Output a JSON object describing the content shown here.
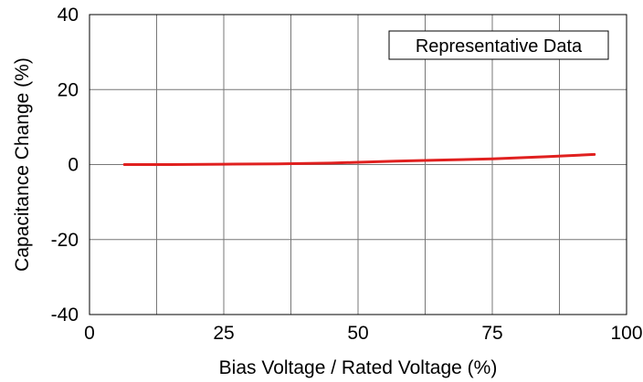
{
  "chart_data": {
    "type": "line",
    "title": "",
    "xlabel": "Bias  Voltage / Rated Voltage (%)",
    "ylabel": "Capacitance Change (%)",
    "xlim": [
      0,
      100
    ],
    "ylim": [
      -40,
      40
    ],
    "x_ticks": [
      "0",
      "25",
      "50",
      "75",
      "100"
    ],
    "y_ticks": [
      "40",
      "20",
      "0",
      "-20",
      "-40"
    ],
    "grid": true,
    "annotation": "Representative Data",
    "series": [
      {
        "color": "#e0201f",
        "x": [
          6.5,
          15,
          25,
          35,
          45,
          50,
          57,
          65,
          75,
          85,
          94
        ],
        "y": [
          0.0,
          0.0,
          0.1,
          0.2,
          0.4,
          0.6,
          0.9,
          1.2,
          1.5,
          2.1,
          2.7
        ]
      }
    ]
  }
}
